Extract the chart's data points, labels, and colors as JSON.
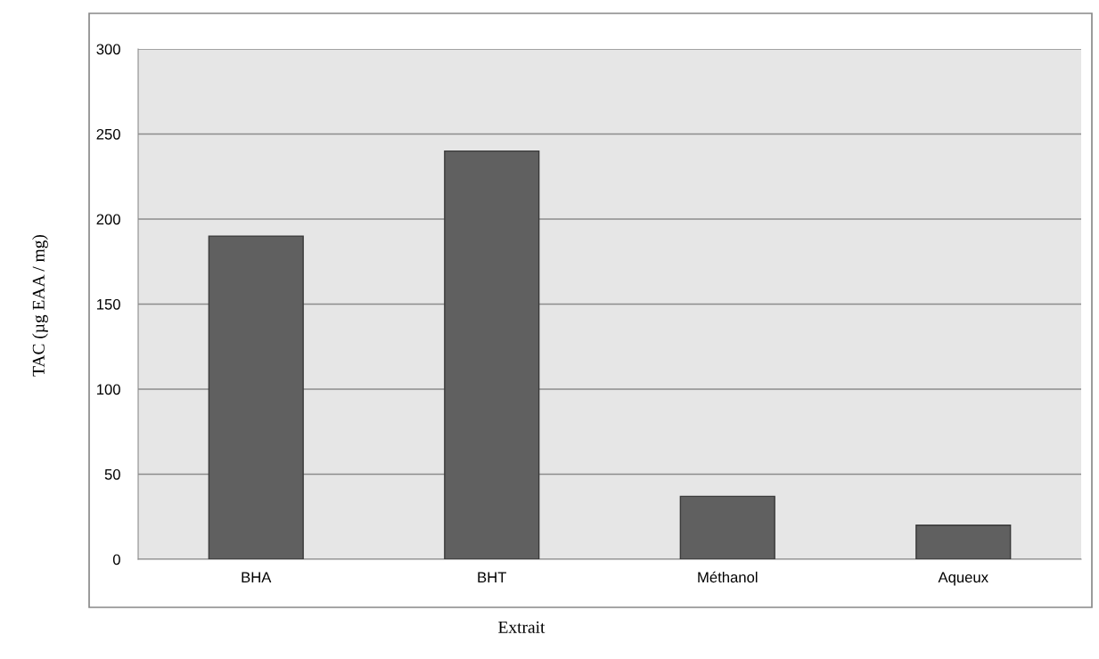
{
  "chart_data": {
    "type": "bar",
    "xlabel": "Extrait",
    "ylabel": "TAC (µg EAA / mg)",
    "categories": [
      "BHA",
      "BHT",
      "Méthanol",
      "Aqueux"
    ],
    "values": [
      190,
      240,
      37,
      20
    ],
    "color": "#606060",
    "ylim": [
      0,
      300
    ],
    "yticks": [
      0,
      50,
      100,
      150,
      200,
      250,
      300
    ],
    "grid": "y"
  }
}
